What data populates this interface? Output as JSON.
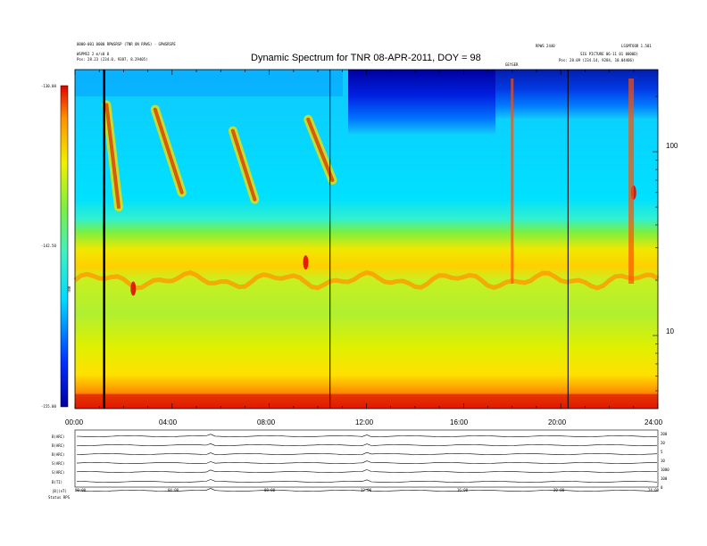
{
  "header": {
    "title": "Dynamic Spectrum for TNR 08-APR-2011, DOY = 98",
    "left_line1": "0000-001 0000 RPWSRSP (TNR ON RPWS) - GPWSRSPE",
    "left_line2": "WSPMSI 2 m/s0 0",
    "left_line3": "Pos:   28.23 (234.0, 9387, 8.29405)",
    "right_top_center": "RPWS 2440",
    "right_top_right": "LSSMTOOR 1.501",
    "right_line2": "SIG PICTURE 06-11 01 0000D)",
    "right_line3": "Pos:   28.09 (234.14, 9284, 10.04406)",
    "near_right_marker": "GEYSER"
  },
  "colorbar": {
    "label": "TNR",
    "ticks": [
      "-130.00",
      "-142.50",
      "-155.00"
    ]
  },
  "lower_panel": {
    "row_labels": [
      "B(ARC)",
      "B(ARC)",
      "B(ARC)",
      "S(ARC)",
      "S(ARC)",
      "B(TI)",
      "|B|(nT)"
    ],
    "right_labels": [
      "200",
      "20",
      "5",
      "10",
      "1000",
      "100",
      "0"
    ],
    "axis_ticks": [
      "00:00",
      "04:00",
      "08:00",
      "12:00",
      "16:00",
      "20:00",
      "24:00"
    ],
    "footer": "Status  RPS"
  },
  "chart_data": {
    "type": "heatmap",
    "title": "Dynamic Spectrum for TNR 08-APR-2011, DOY = 98",
    "x_ticks": [
      "00:00",
      "04:00",
      "08:00",
      "12:00",
      "16:00",
      "20:00",
      "24:00"
    ],
    "x_range_hours": [
      0,
      24
    ],
    "y_scale": "log",
    "y_ticks": [
      "100",
      "10"
    ],
    "y_range_approx": [
      4.0,
      280
    ],
    "colorbar_range": [
      -155.0,
      -130.0
    ],
    "colorbar_ticks": [
      "-130.00",
      "-142.50",
      "-155.00"
    ],
    "colormap": [
      "#0000a0",
      "#0030ff",
      "#00d8ff",
      "#40f0c0",
      "#7cf040",
      "#f0f000",
      "#ff9000",
      "#e00000"
    ],
    "vertical_lines_hours": [
      1.2,
      10.5,
      20.3
    ],
    "band_features": [
      {
        "name": "auroral-band",
        "freq_approx": 20,
        "level": "yellow-orange"
      },
      {
        "name": "low-freq-floor",
        "freq_approx": 4.5,
        "level": "red"
      },
      {
        "name": "burst",
        "hours": 9.5,
        "freq_approx": 25
      },
      {
        "name": "burst",
        "hours": 2.4,
        "freq_approx": 18
      },
      {
        "name": "burst",
        "hours": 23.0,
        "freq_approx": 60
      }
    ]
  }
}
